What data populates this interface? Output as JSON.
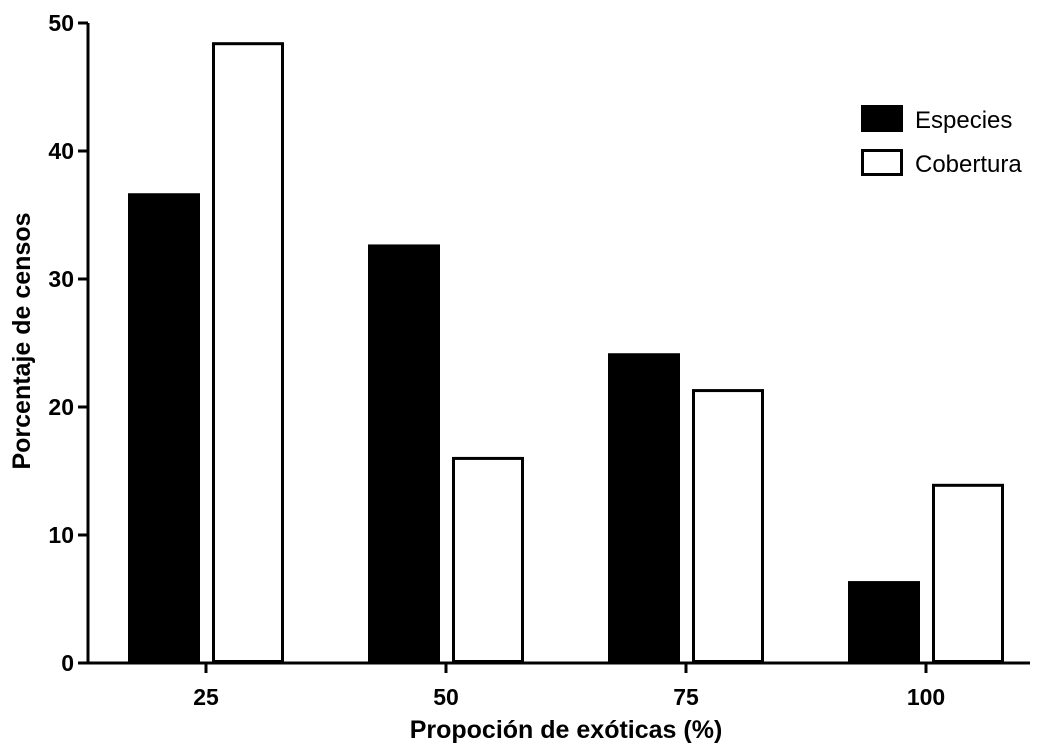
{
  "chart_data": {
    "type": "bar",
    "title": "",
    "xlabel": "Propoción de exóticas (%)",
    "ylabel": "Porcentaje de censos",
    "categories": [
      "25",
      "50",
      "75",
      "100"
    ],
    "ylim": [
      0,
      50
    ],
    "yticks": [
      0,
      10,
      20,
      30,
      40,
      50
    ],
    "series": [
      {
        "name": "Especies",
        "values": [
          36.7,
          32.7,
          24.2,
          6.4
        ],
        "fill": "#000000",
        "stroke": "#000000"
      },
      {
        "name": "Cobertura",
        "values": [
          48.5,
          16.1,
          21.4,
          14.0
        ],
        "fill": "#ffffff",
        "stroke": "#000000"
      }
    ],
    "legend_position": "top-right",
    "grid": false
  }
}
